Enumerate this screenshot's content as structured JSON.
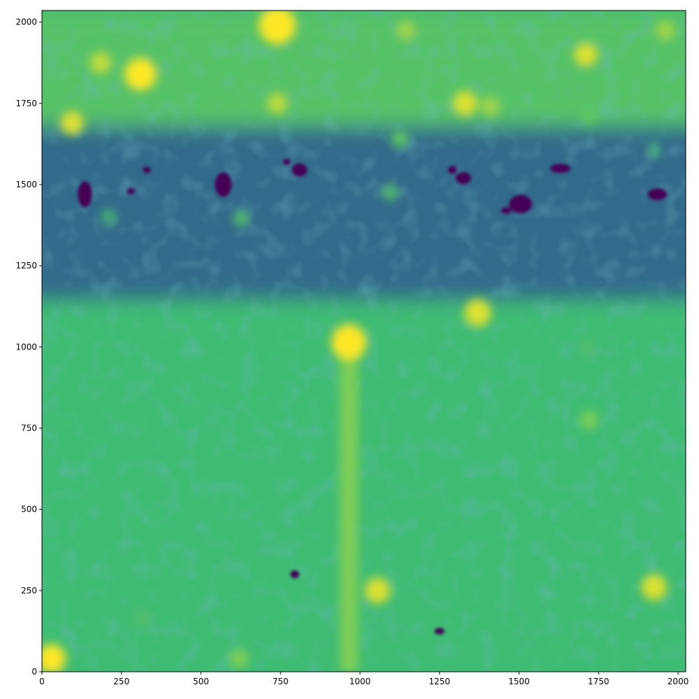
{
  "chart_data": {
    "type": "heatmap",
    "title": "",
    "xlabel": "",
    "ylabel": "",
    "xlim": [
      0,
      2024
    ],
    "ylim": [
      0,
      2036
    ],
    "x_ticks": [
      0,
      250,
      500,
      750,
      1000,
      1250,
      1500,
      1750,
      2000
    ],
    "y_ticks": [
      0,
      250,
      500,
      750,
      1000,
      1250,
      1500,
      1750,
      2000
    ],
    "colormap": "viridis",
    "colors": {
      "base": "#3fbc73",
      "upper_band": "#8fd744",
      "dark_band": "#2a788e",
      "bright": "#fde725",
      "dark_blob": "#440154"
    },
    "grid": false,
    "background_regions": [
      {
        "name": "upper-bright-band",
        "y_range": [
          1680,
          2036
        ],
        "level": 0.72
      },
      {
        "name": "dark-noisy-band",
        "y_range": [
          1150,
          1680
        ],
        "level": 0.35
      }
    ],
    "streak": {
      "x": 965,
      "y_range": [
        0,
        1020
      ],
      "level": 0.8
    },
    "bright_sources": [
      {
        "x": 740,
        "y": 1990,
        "r": 58,
        "level": 1.0
      },
      {
        "x": 310,
        "y": 1840,
        "r": 50,
        "level": 1.0
      },
      {
        "x": 965,
        "y": 1015,
        "r": 55,
        "level": 1.0
      },
      {
        "x": 1370,
        "y": 1105,
        "r": 42,
        "level": 0.95
      },
      {
        "x": 1925,
        "y": 260,
        "r": 40,
        "level": 0.95
      },
      {
        "x": 1055,
        "y": 250,
        "r": 40,
        "level": 0.95
      },
      {
        "x": 95,
        "y": 1690,
        "r": 36,
        "level": 0.95
      },
      {
        "x": 185,
        "y": 1875,
        "r": 34,
        "level": 0.9
      },
      {
        "x": 1330,
        "y": 1750,
        "r": 38,
        "level": 0.95
      },
      {
        "x": 1410,
        "y": 1740,
        "r": 30,
        "level": 0.85
      },
      {
        "x": 1710,
        "y": 1900,
        "r": 36,
        "level": 0.95
      },
      {
        "x": 1960,
        "y": 1975,
        "r": 30,
        "level": 0.85
      },
      {
        "x": 1145,
        "y": 1975,
        "r": 30,
        "level": 0.85
      },
      {
        "x": 740,
        "y": 1750,
        "r": 32,
        "level": 0.9
      },
      {
        "x": 1125,
        "y": 1640,
        "r": 26,
        "level": 0.75
      },
      {
        "x": 1095,
        "y": 1475,
        "r": 24,
        "level": 0.7
      },
      {
        "x": 625,
        "y": 1395,
        "r": 24,
        "level": 0.7
      },
      {
        "x": 210,
        "y": 1400,
        "r": 24,
        "level": 0.65
      },
      {
        "x": 1720,
        "y": 775,
        "r": 28,
        "level": 0.8
      },
      {
        "x": 1715,
        "y": 1000,
        "r": 24,
        "level": 0.7
      },
      {
        "x": 1720,
        "y": 1710,
        "r": 24,
        "level": 0.75
      },
      {
        "x": 30,
        "y": 40,
        "r": 45,
        "level": 1.0
      },
      {
        "x": 620,
        "y": 40,
        "r": 30,
        "level": 0.8
      },
      {
        "x": 315,
        "y": 165,
        "r": 26,
        "level": 0.7
      },
      {
        "x": 1925,
        "y": 1605,
        "r": 20,
        "level": 0.65
      }
    ],
    "dark_blobs": [
      {
        "x": 135,
        "y": 1470,
        "rx": 22,
        "ry": 40
      },
      {
        "x": 570,
        "y": 1500,
        "rx": 26,
        "ry": 38
      },
      {
        "x": 810,
        "y": 1545,
        "rx": 24,
        "ry": 20
      },
      {
        "x": 770,
        "y": 1570,
        "rx": 12,
        "ry": 10
      },
      {
        "x": 330,
        "y": 1545,
        "rx": 12,
        "ry": 10
      },
      {
        "x": 280,
        "y": 1480,
        "rx": 12,
        "ry": 10
      },
      {
        "x": 1325,
        "y": 1520,
        "rx": 24,
        "ry": 18
      },
      {
        "x": 1290,
        "y": 1545,
        "rx": 14,
        "ry": 12
      },
      {
        "x": 1505,
        "y": 1440,
        "rx": 36,
        "ry": 28
      },
      {
        "x": 1460,
        "y": 1420,
        "rx": 16,
        "ry": 10
      },
      {
        "x": 1630,
        "y": 1550,
        "rx": 32,
        "ry": 14
      },
      {
        "x": 1935,
        "y": 1470,
        "rx": 30,
        "ry": 18
      },
      {
        "x": 795,
        "y": 300,
        "rx": 14,
        "ry": 12
      },
      {
        "x": 1250,
        "y": 125,
        "rx": 16,
        "ry": 10
      }
    ]
  }
}
